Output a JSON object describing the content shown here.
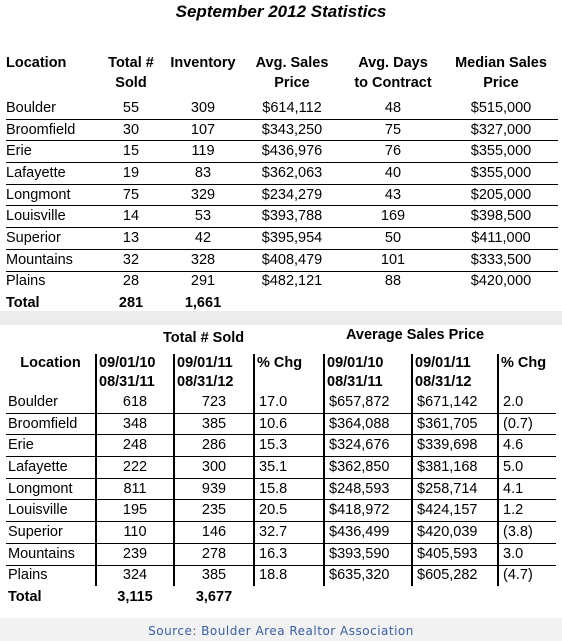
{
  "title": "September 2012 Statistics",
  "top_table": {
    "headers": [
      [
        "Location",
        ""
      ],
      [
        "Total #",
        "Sold"
      ],
      [
        "Inventory",
        ""
      ],
      [
        "Avg. Sales",
        "Price"
      ],
      [
        "Avg. Days",
        "to Contract"
      ],
      [
        "Median Sales",
        "Price"
      ]
    ],
    "rows": [
      [
        "Boulder",
        "55",
        "309",
        "$614,112",
        "48",
        "$515,000"
      ],
      [
        "Broomfield",
        "30",
        "107",
        "$343,250",
        "75",
        "$327,000"
      ],
      [
        "Erie",
        "15",
        "119",
        "$436,976",
        "76",
        "$355,000"
      ],
      [
        "Lafayette",
        "19",
        "83",
        "$362,063",
        "40",
        "$355,000"
      ],
      [
        "Longmont",
        "75",
        "329",
        "$234,279",
        "43",
        "$205,000"
      ],
      [
        "Louisville",
        "14",
        "53",
        "$393,788",
        "169",
        "$398,500"
      ],
      [
        "Superior",
        "13",
        "42",
        "$395,954",
        "50",
        "$411,000"
      ],
      [
        "Mountains",
        "32",
        "328",
        "$408,479",
        "101",
        "$333,500"
      ],
      [
        "Plains",
        "28",
        "291",
        "$482,121",
        "88",
        "$420,000"
      ]
    ],
    "total": [
      "Total",
      "281",
      "1,661",
      "",
      "",
      ""
    ]
  },
  "bottom_table": {
    "group_sold": "Total # Sold",
    "group_price": "Average Sales Price",
    "header_row1": [
      "Location",
      "09/01/10",
      "09/01/11",
      "% Chg",
      "09/01/10",
      "09/01/11",
      "% Chg"
    ],
    "header_row2": [
      "",
      "08/31/11",
      "08/31/12",
      "",
      "08/31/11",
      "08/31/12",
      ""
    ],
    "rows": [
      [
        "Boulder",
        "618",
        "723",
        "17.0",
        "$657,872",
        "$671,142",
        "2.0"
      ],
      [
        "Broomfield",
        "348",
        "385",
        "10.6",
        "$364,088",
        "$361,705",
        "(0.7)"
      ],
      [
        "Erie",
        "248",
        "286",
        "15.3",
        "$324,676",
        "$339,698",
        "4.6"
      ],
      [
        "Lafayette",
        "222",
        "300",
        "35.1",
        "$362,850",
        "$381,168",
        "5.0"
      ],
      [
        "Longmont",
        "811",
        "939",
        "15.8",
        "$248,593",
        "$258,714",
        "4.1"
      ],
      [
        "Louisville",
        "195",
        "235",
        "20.5",
        "$418,972",
        "$424,157",
        "1.2"
      ],
      [
        "Superior",
        "110",
        "146",
        "32.7",
        "$436,499",
        "$420,039",
        "(3.8)"
      ],
      [
        "Mountains",
        "239",
        "278",
        "16.3",
        "$393,590",
        "$405,593",
        "3.0"
      ],
      [
        "Plains",
        "324",
        "385",
        "18.8",
        "$635,320",
        "$605,282",
        "(4.7)"
      ]
    ],
    "total": [
      "Total",
      "3,115",
      "3,677",
      "",
      "",
      "",
      ""
    ]
  },
  "source": "Source: Boulder Area Realtor Association"
}
